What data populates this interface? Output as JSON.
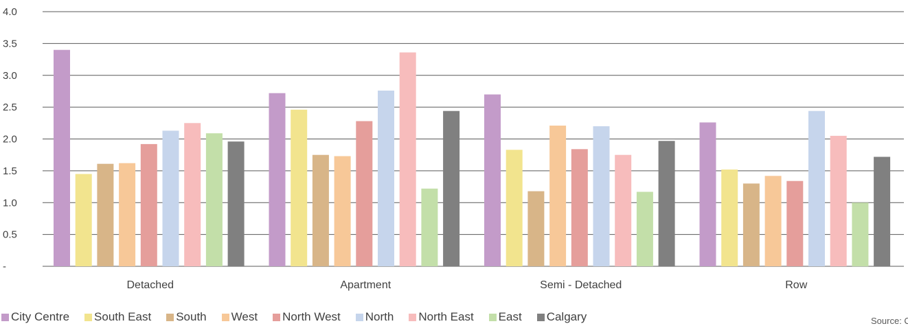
{
  "chart_data": {
    "type": "bar",
    "categories": [
      "Detached",
      "Apartment",
      "Semi - Detached",
      "Row"
    ],
    "ylim": [
      0,
      4.0
    ],
    "yticks": [
      {
        "value": 0,
        "label": "-"
      },
      {
        "value": 0.5,
        "label": "0.5"
      },
      {
        "value": 1.0,
        "label": "1.0"
      },
      {
        "value": 1.5,
        "label": "1.5"
      },
      {
        "value": 2.0,
        "label": "2.0"
      },
      {
        "value": 2.5,
        "label": "2.5"
      },
      {
        "value": 3.0,
        "label": "3.0"
      },
      {
        "value": 3.5,
        "label": "3.5"
      },
      {
        "value": 4.0,
        "label": "4.0"
      }
    ],
    "grid": true,
    "legend_position": "bottom",
    "series": [
      {
        "name": "City Centre",
        "color": "#c39bc9",
        "values": [
          3.4,
          2.72,
          2.7,
          2.26
        ]
      },
      {
        "name": "South East",
        "color": "#f2e48e",
        "values": [
          1.45,
          2.46,
          1.83,
          1.52
        ]
      },
      {
        "name": "South",
        "color": "#d8b588",
        "values": [
          1.61,
          1.75,
          1.18,
          1.3
        ]
      },
      {
        "name": "West",
        "color": "#f7c898",
        "values": [
          1.62,
          1.73,
          2.21,
          1.42
        ]
      },
      {
        "name": "North West",
        "color": "#e59e9b",
        "values": [
          1.92,
          2.28,
          1.84,
          1.34
        ]
      },
      {
        "name": "North",
        "color": "#c6d5ec",
        "values": [
          2.13,
          2.76,
          2.2,
          2.44
        ]
      },
      {
        "name": "North East",
        "color": "#f7bcbc",
        "values": [
          2.25,
          3.36,
          1.75,
          2.05
        ]
      },
      {
        "name": "East",
        "color": "#c3dfa9",
        "values": [
          2.09,
          1.22,
          1.17,
          1.0
        ]
      },
      {
        "name": "Calgary",
        "color": "#808080",
        "values": [
          1.96,
          2.44,
          1.97,
          1.72
        ]
      }
    ]
  },
  "source": "Source: CR"
}
